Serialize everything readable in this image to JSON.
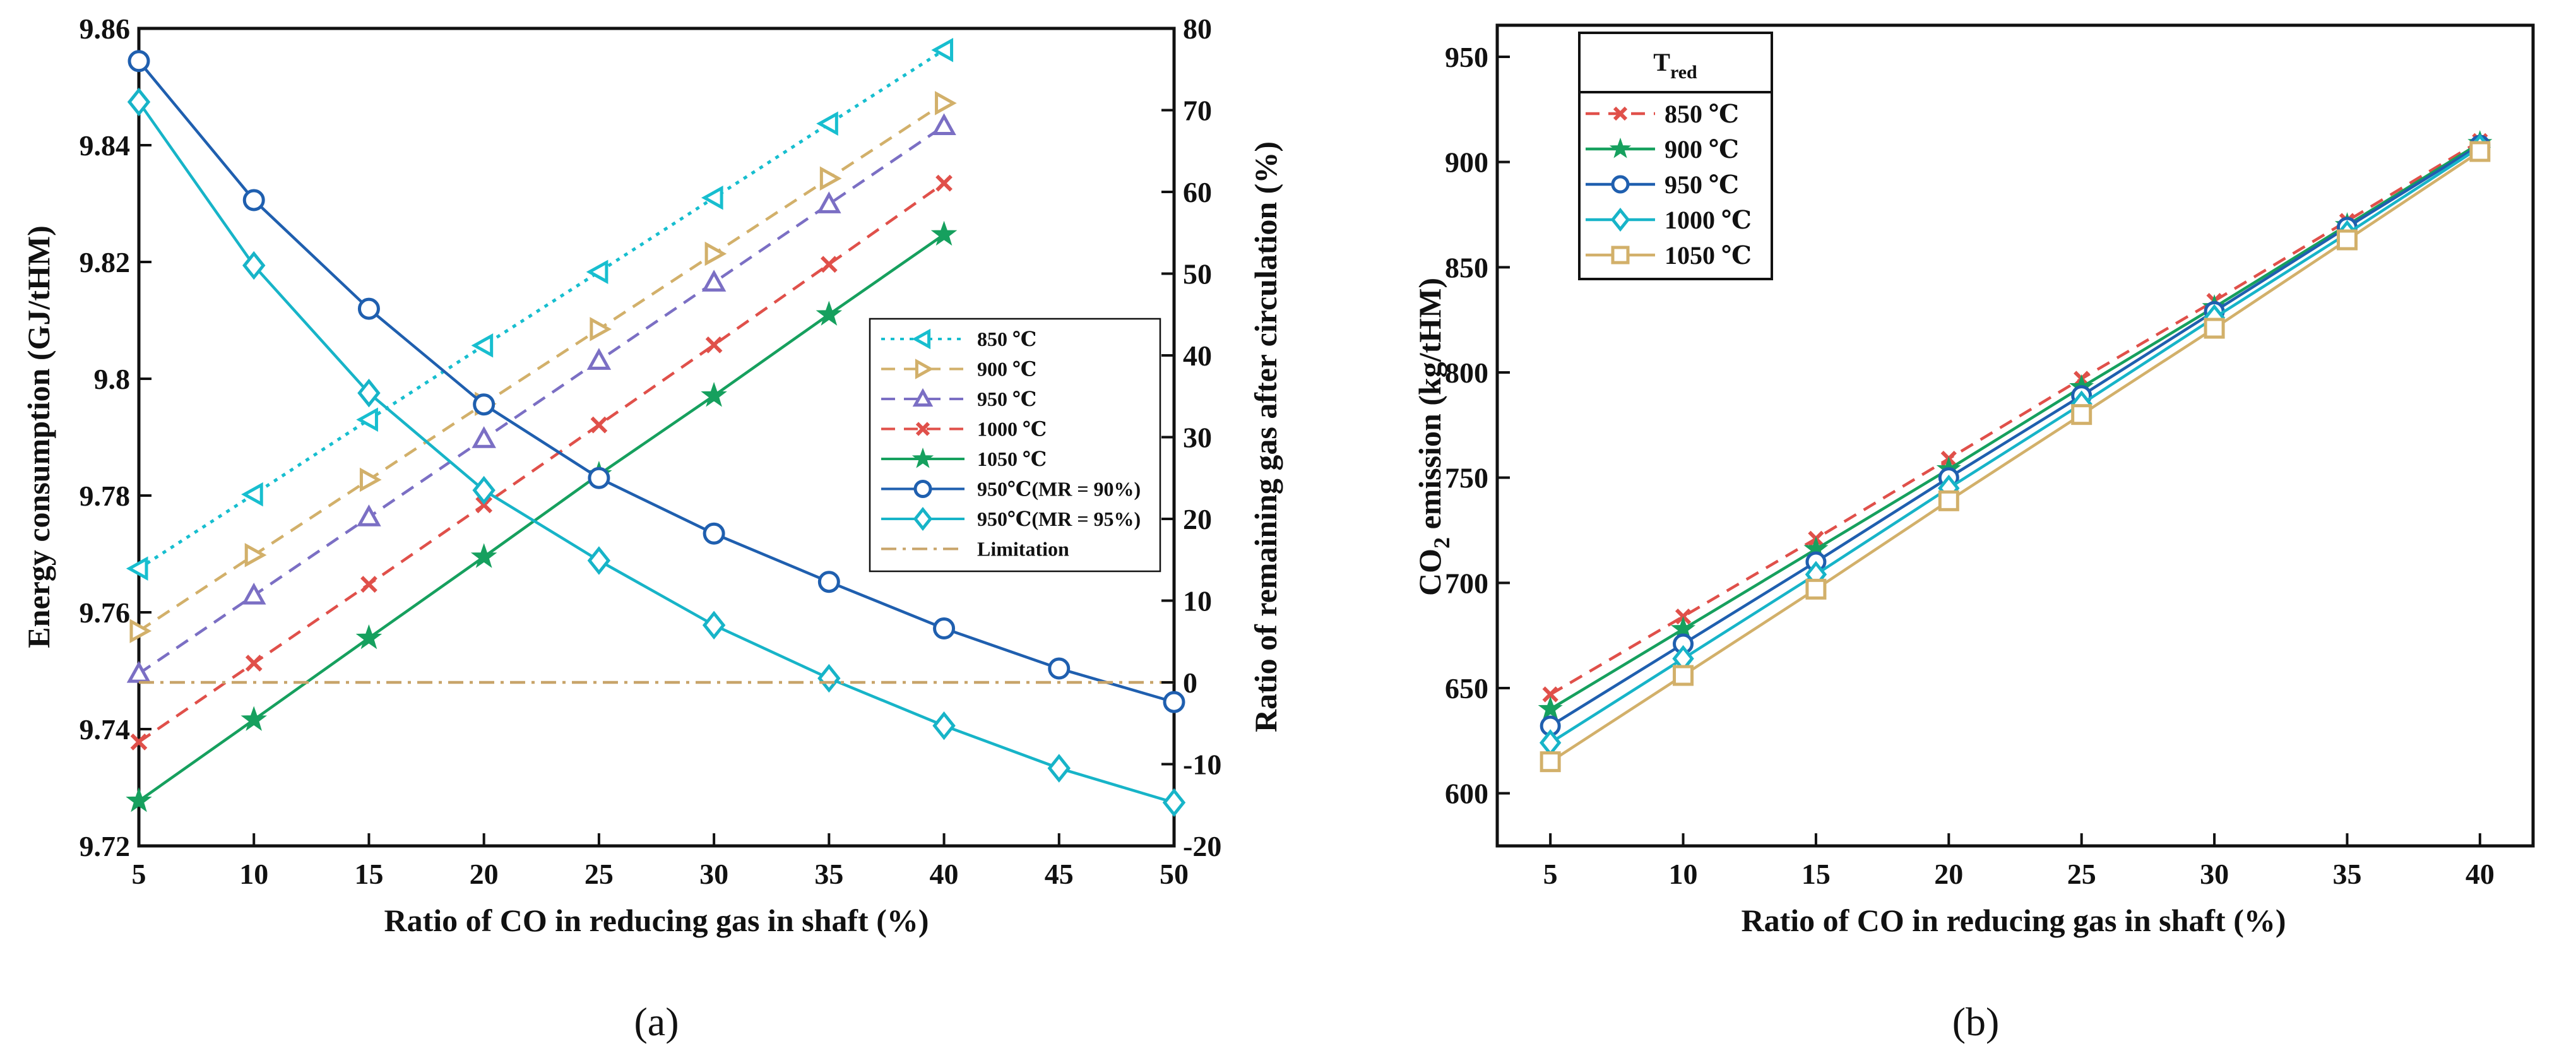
{
  "colors": {
    "c850a": "#17BECF",
    "c900a": "#D2B06A",
    "c950a": "#7B6FC4",
    "c1000a": "#E0504A",
    "c1050a": "#16A05E",
    "mr90": "#1F5FAF",
    "mr95": "#17B4C8",
    "limit": "#C8A46A",
    "b850": "#E0504A",
    "b900": "#16A05E",
    "b950": "#1F5FAF",
    "b1000": "#17B4C8",
    "b1050": "#D2B06A"
  },
  "chart_data": [
    {
      "id": "a",
      "type": "line",
      "subfigure_label": "(a)",
      "xlabel": "Ratio of CO in reducing gas in shaft (%)",
      "ylabel": "Energy consumption (GJ/tHM)",
      "ylabel_right": "Ratio of remaining gas after circulation (%)",
      "xlim": [
        5,
        50
      ],
      "ylim": [
        9.72,
        9.86
      ],
      "ylim_right": [
        -20,
        80
      ],
      "x_ticks": [
        5,
        10,
        15,
        20,
        25,
        30,
        35,
        40,
        45,
        50
      ],
      "y_ticks": [
        9.72,
        9.74,
        9.76,
        9.78,
        9.8,
        9.82,
        9.84,
        9.86
      ],
      "y_tick_labels": [
        "9.72",
        "9.74",
        "9.76",
        "9.78",
        "9.8",
        "9.82",
        "9.84",
        "9.86"
      ],
      "y_right_ticks": [
        -20,
        -10,
        0,
        10,
        20,
        30,
        40,
        50,
        60,
        70,
        80
      ],
      "legend_position": "right-middle",
      "series": [
        {
          "name": "850 ℃",
          "axis": "left",
          "x": [
            5,
            10,
            15,
            20,
            25,
            30,
            35,
            40
          ],
          "values": [
            9.7675,
            9.7802,
            9.793,
            9.8057,
            9.8183,
            9.831,
            9.8437,
            9.8563
          ],
          "marker": "triangle-left",
          "dash": "dotted",
          "color_key": "c850a"
        },
        {
          "name": "900 ℃",
          "axis": "left",
          "x": [
            5,
            10,
            15,
            20,
            25,
            30,
            35,
            40
          ],
          "values": [
            9.7568,
            9.7698,
            9.7827,
            9.7957,
            9.8085,
            9.8214,
            9.8343,
            9.8472
          ],
          "marker": "triangle-right",
          "dash": "dashed",
          "color_key": "c900a"
        },
        {
          "name": "950 ℃",
          "axis": "left",
          "x": [
            5,
            10,
            15,
            20,
            25,
            30,
            35,
            40
          ],
          "values": [
            9.7495,
            9.7629,
            9.7763,
            9.7897,
            9.8031,
            9.8165,
            9.8299,
            9.8433
          ],
          "marker": "triangle-up",
          "dash": "dashed",
          "color_key": "c950a"
        },
        {
          "name": "1000 ℃",
          "axis": "left",
          "x": [
            5,
            10,
            15,
            20,
            25,
            30,
            35,
            40
          ],
          "values": [
            9.7378,
            9.7513,
            9.7648,
            9.7784,
            9.7921,
            9.8058,
            9.8196,
            9.8335
          ],
          "marker": "x",
          "dash": "dashed",
          "color_key": "c1000a"
        },
        {
          "name": "1050 ℃",
          "axis": "left",
          "x": [
            5,
            10,
            15,
            20,
            25,
            30,
            35,
            40
          ],
          "values": [
            9.7277,
            9.7416,
            9.7556,
            9.7695,
            9.7836,
            9.7971,
            9.811,
            9.8247
          ],
          "marker": "star",
          "dash": "solid",
          "color_key": "c1050a"
        },
        {
          "name": "950℃(MR = 90%)",
          "axis": "right",
          "x": [
            5,
            10,
            15,
            20,
            25,
            30,
            35,
            40,
            45,
            50
          ],
          "values": [
            76,
            59,
            45.7,
            34,
            25,
            18.2,
            12.3,
            6.6,
            1.7,
            -2.4
          ],
          "marker": "circle",
          "dash": "solid",
          "color_key": "mr90"
        },
        {
          "name": "950℃(MR = 95%)",
          "axis": "right",
          "x": [
            5,
            10,
            15,
            20,
            25,
            30,
            35,
            40,
            45,
            50
          ],
          "values": [
            71,
            51,
            35.4,
            23.5,
            14.9,
            7,
            0.5,
            -5.3,
            -10.5,
            -14.7
          ],
          "marker": "diamond",
          "dash": "solid",
          "color_key": "mr95"
        },
        {
          "name": "Limitation",
          "axis": "right",
          "x": [
            5,
            50
          ],
          "values": [
            0,
            0
          ],
          "marker": "none",
          "dash": "dashdot",
          "color_key": "limit"
        }
      ]
    },
    {
      "id": "b",
      "type": "line",
      "subfigure_label": "(b)",
      "xlabel": "Ratio of CO in reducing gas in shaft (%)",
      "ylabel_prefix": "CO",
      "ylabel_subscript": "2",
      "ylabel_suffix": " emission (kg/tHM)",
      "xlim": [
        3,
        42
      ],
      "ylim": [
        575,
        965
      ],
      "x_ticks": [
        5,
        10,
        15,
        20,
        25,
        30,
        35,
        40
      ],
      "y_ticks": [
        600,
        650,
        700,
        750,
        800,
        850,
        900,
        950
      ],
      "legend_title_main": "T",
      "legend_title_sub": "red",
      "legend_position": "top-left",
      "series": [
        {
          "name": "850 ℃",
          "x": [
            5,
            10,
            15,
            20,
            25,
            30,
            35,
            40
          ],
          "values": [
            647,
            684,
            721,
            759,
            797,
            834,
            872,
            910
          ],
          "marker": "x",
          "dash": "dashed",
          "color_key": "b850"
        },
        {
          "name": "900 ℃",
          "x": [
            5,
            10,
            15,
            20,
            25,
            30,
            35,
            40
          ],
          "values": [
            640,
            678,
            716,
            754,
            793,
            831,
            870,
            909
          ],
          "marker": "star",
          "dash": "solid",
          "color_key": "b900"
        },
        {
          "name": "950 ℃",
          "x": [
            5,
            10,
            15,
            20,
            25,
            30,
            35,
            40
          ],
          "values": [
            632,
            671,
            710,
            750,
            789,
            829,
            869,
            908
          ],
          "marker": "circle",
          "dash": "solid",
          "color_key": "b950"
        },
        {
          "name": "1000 ℃",
          "x": [
            5,
            10,
            15,
            20,
            25,
            30,
            35,
            40
          ],
          "values": [
            624,
            664,
            704,
            745,
            785,
            826,
            866,
            907
          ],
          "marker": "diamond",
          "dash": "solid",
          "color_key": "b1000"
        },
        {
          "name": "1050 ℃",
          "x": [
            5,
            10,
            15,
            20,
            25,
            30,
            35,
            40
          ],
          "values": [
            615,
            656,
            697,
            739,
            780,
            821,
            863,
            905
          ],
          "marker": "square",
          "dash": "solid",
          "color_key": "b1050"
        }
      ]
    }
  ]
}
